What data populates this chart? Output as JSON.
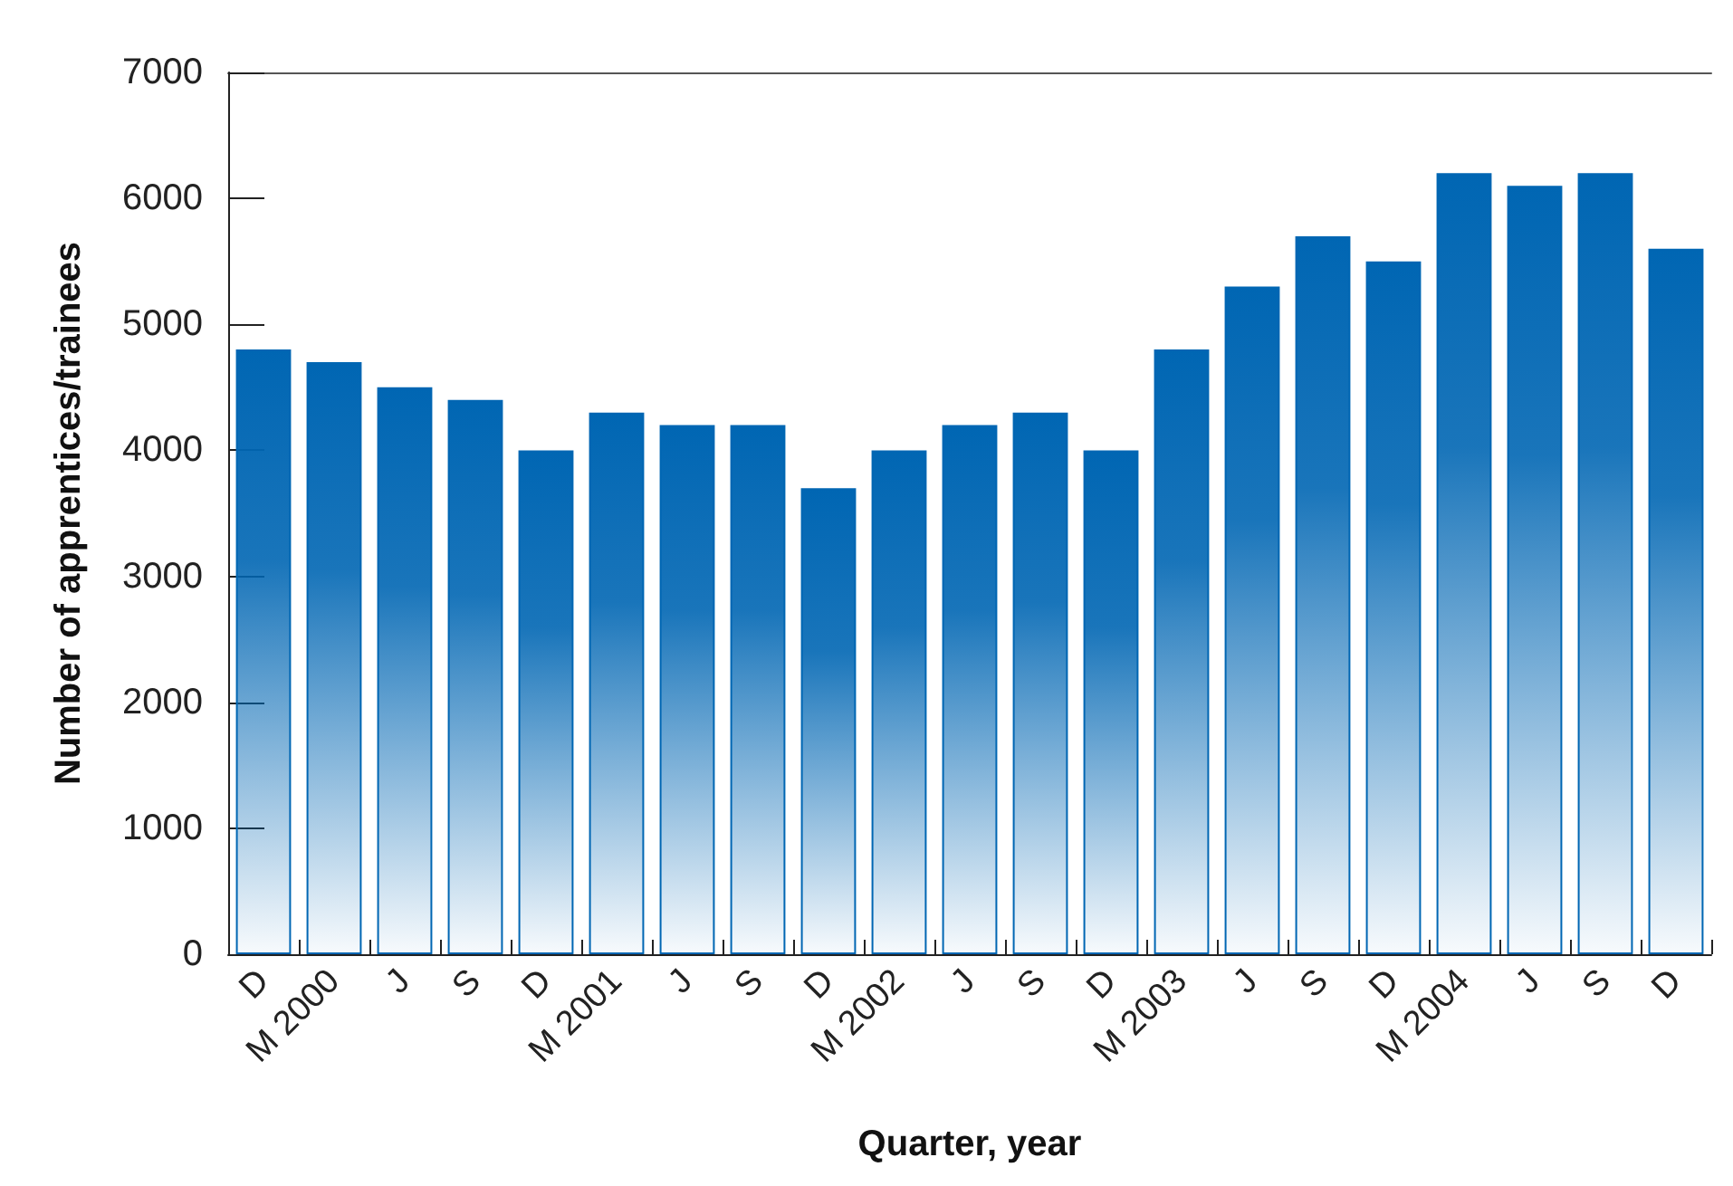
{
  "chart_data": {
    "type": "bar",
    "xlabel": "Quarter, year",
    "ylabel": "Number of apprentices/trainees",
    "categories": [
      "D",
      "M 2000",
      "J",
      "S",
      "D",
      "M 2001",
      "J",
      "S",
      "D",
      "M 2002",
      "J",
      "S",
      "D",
      "M 2003",
      "J",
      "S",
      "D",
      "M 2004",
      "J",
      "S",
      "D"
    ],
    "values": [
      4800,
      4700,
      4500,
      4400,
      4000,
      4300,
      4200,
      4200,
      3700,
      4000,
      4200,
      4300,
      4000,
      4800,
      5300,
      5700,
      5500,
      6200,
      6100,
      6200,
      5600
    ],
    "color": "#0066b3",
    "ylim": [
      0,
      7000
    ],
    "yticks": [
      0,
      1000,
      2000,
      3000,
      4000,
      5000,
      6000,
      7000
    ],
    "grid": false
  }
}
